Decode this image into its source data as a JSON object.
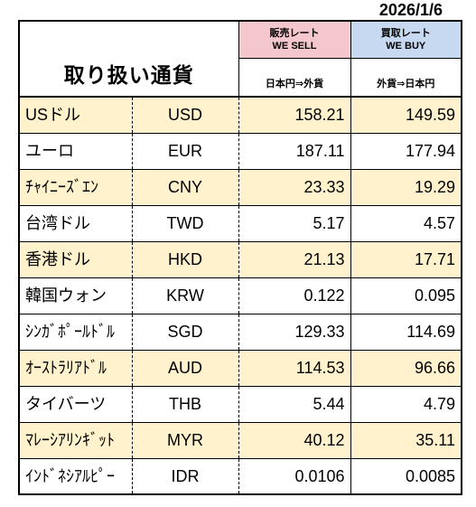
{
  "date": "2026/1/6",
  "header": {
    "title": "取り扱い通貨",
    "sell": {
      "label_ja": "販売レート",
      "label_en": "WE SELL",
      "direction": "日本円⇒外貨"
    },
    "buy": {
      "label_ja": "買取レート",
      "label_en": "WE BUY",
      "direction": "外貨⇒日本円"
    }
  },
  "colors": {
    "sell_header": "#F4C6CD",
    "buy_header": "#C6D9F1",
    "highlight_row": "#FFF2CC",
    "plain_row": "#FFFFFF"
  },
  "rows": [
    {
      "name": "USドル",
      "code": "USD",
      "sell": "158.21",
      "buy": "149.59",
      "highlight": true
    },
    {
      "name": "ユーロ",
      "code": "EUR",
      "sell": "187.11",
      "buy": "177.94",
      "highlight": false
    },
    {
      "name": "ﾁｬｲﾆｰｽﾞｴﾝ",
      "code": "CNY",
      "sell": "23.33",
      "buy": "19.29",
      "highlight": true
    },
    {
      "name": "台湾ドル",
      "code": "TWD",
      "sell": "5.17",
      "buy": "4.57",
      "highlight": false
    },
    {
      "name": "香港ドル",
      "code": "HKD",
      "sell": "21.13",
      "buy": "17.71",
      "highlight": true
    },
    {
      "name": "韓国ウォン",
      "code": "KRW",
      "sell": "0.122",
      "buy": "0.095",
      "highlight": false
    },
    {
      "name": "ｼﾝｶﾞﾎﾟｰﾙﾄﾞﾙ",
      "code": "SGD",
      "sell": "129.33",
      "buy": "114.69",
      "highlight": false
    },
    {
      "name": "ｵｰｽﾄﾗﾘｱﾄﾞﾙ",
      "code": "AUD",
      "sell": "114.53",
      "buy": "96.66",
      "highlight": true
    },
    {
      "name": "タイバーツ",
      "code": "THB",
      "sell": "5.44",
      "buy": "4.79",
      "highlight": false
    },
    {
      "name": "ﾏﾚｰｼｱﾘﾝｷﾞｯﾄ",
      "code": "MYR",
      "sell": "40.12",
      "buy": "35.11",
      "highlight": true
    },
    {
      "name": "ｲﾝﾄﾞﾈｼｱﾙﾋﾟｰ",
      "code": "IDR",
      "sell": "0.0106",
      "buy": "0.0085",
      "highlight": false
    }
  ]
}
